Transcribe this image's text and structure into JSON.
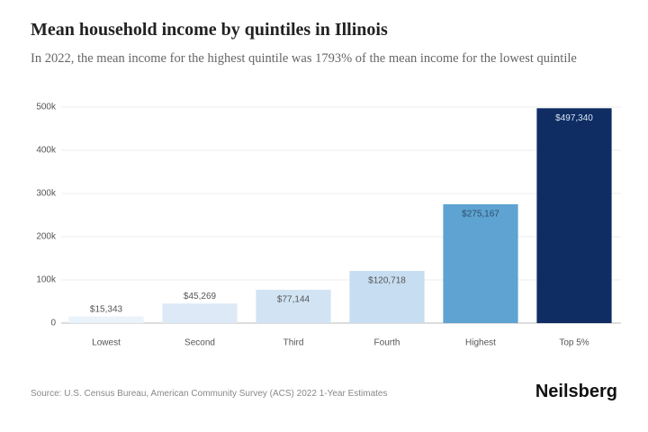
{
  "chart_data": {
    "type": "bar",
    "title": "Mean household income by quintiles in Illinois",
    "subtitle": "In 2022, the mean income for the highest quintile was 1793% of the mean income for the lowest quintile",
    "categories": [
      "Lowest",
      "Second",
      "Third",
      "Fourth",
      "Highest",
      "Top 5%"
    ],
    "values": [
      15343,
      45269,
      77144,
      120718,
      275167,
      497340
    ],
    "value_labels": [
      "$15,343",
      "$45,269",
      "$77,144",
      "$120,718",
      "$275,167",
      "$497,340"
    ],
    "colors": [
      "#eaf2fa",
      "#dde9f6",
      "#d2e4f4",
      "#c7ddf1",
      "#5ea3d1",
      "#0f2d63"
    ],
    "ylim": [
      0,
      500000
    ],
    "yticks": [
      0,
      {
        "value": 100000,
        "label": "100k"
      },
      {
        "value": 200000,
        "label": "200k"
      },
      {
        "value": 300000,
        "label": "300k"
      },
      {
        "value": 400000,
        "label": "400k"
      },
      {
        "value": 500000,
        "label": "500k"
      }
    ],
    "grid": true,
    "source": "Source: U.S. Census Bureau, American Community Survey (ACS) 2022 1-Year Estimates",
    "brand": "Neilsberg"
  }
}
